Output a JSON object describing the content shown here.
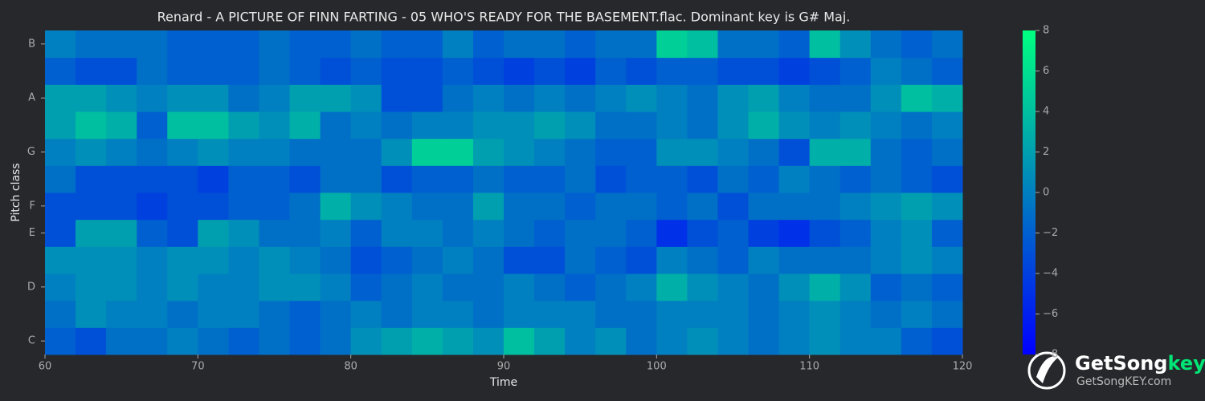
{
  "chart_data": {
    "type": "heatmap",
    "title": "Renard - A PICTURE OF FINN FARTING - 05 WHO'S READY FOR THE BASEMENT.flac. Dominant key is G# Maj.",
    "xlabel": "Time",
    "ylabel": "Pitch class",
    "categories": [
      "C",
      null,
      "D",
      null,
      "E",
      "F",
      null,
      "G",
      null,
      "A",
      null,
      "B"
    ],
    "x": [
      60,
      62,
      64,
      66,
      68,
      70,
      72,
      74,
      76,
      78,
      80,
      82,
      84,
      86,
      88,
      90,
      92,
      94,
      96,
      98,
      100,
      102,
      104,
      106,
      108,
      110,
      112,
      114,
      116,
      118
    ],
    "xlim": [
      60,
      120
    ],
    "xticks": [
      60,
      70,
      80,
      90,
      100,
      110,
      120
    ],
    "z": [
      [
        -2,
        -3,
        -1,
        -1,
        0,
        -1,
        -2,
        -1,
        -2,
        -1,
        1,
        2,
        3,
        2,
        1,
        4,
        2,
        0,
        1,
        -1,
        0,
        1,
        0,
        -1,
        0,
        1,
        0,
        0,
        -2,
        -3
      ],
      [
        -1,
        1,
        0,
        0,
        -1,
        0,
        0,
        -1,
        -2,
        -1,
        0,
        -1,
        0,
        0,
        -1,
        0,
        0,
        0,
        -1,
        -1,
        0,
        0,
        0,
        -1,
        0,
        1,
        0,
        -1,
        0,
        -1
      ],
      [
        0,
        1,
        1,
        0,
        1,
        0,
        0,
        1,
        1,
        0,
        -2,
        -1,
        0,
        -1,
        -1,
        0,
        -1,
        -2,
        -1,
        0,
        3,
        1,
        0,
        -1,
        1,
        3,
        1,
        -2,
        -1,
        -2
      ],
      [
        1,
        1,
        1,
        0,
        1,
        1,
        0,
        1,
        0,
        -1,
        -3,
        -2,
        -1,
        0,
        -1,
        -3,
        -3,
        -1,
        -2,
        -3,
        0,
        -1,
        -2,
        0,
        -1,
        -1,
        -1,
        0,
        1,
        0
      ],
      [
        -3,
        2,
        2,
        -2,
        -3,
        2,
        1,
        -1,
        -1,
        0,
        -2,
        0,
        0,
        -1,
        0,
        -1,
        -2,
        -1,
        -1,
        -2,
        -5,
        -3,
        -2,
        -4,
        -5,
        -3,
        -2,
        0,
        1,
        -2
      ],
      [
        -3,
        -3,
        -3,
        -4,
        -3,
        -3,
        -2,
        -2,
        -1,
        3,
        1,
        0,
        -1,
        -1,
        2,
        -1,
        -1,
        -2,
        -1,
        -1,
        -2,
        -1,
        -3,
        -1,
        -1,
        -1,
        0,
        1,
        2,
        1
      ],
      [
        -1,
        -3,
        -3,
        -3,
        -3,
        -4,
        -2,
        -2,
        -3,
        -1,
        -1,
        -3,
        -2,
        -2,
        -1,
        -2,
        -2,
        -1,
        -3,
        -2,
        -2,
        -3,
        -1,
        -2,
        0,
        -1,
        -2,
        -1,
        -2,
        -3
      ],
      [
        0,
        1,
        0,
        -1,
        0,
        1,
        0,
        0,
        -1,
        -1,
        -1,
        1,
        5,
        5,
        2,
        1,
        0,
        -1,
        -2,
        -2,
        1,
        1,
        0,
        -1,
        -3,
        3,
        3,
        -1,
        -2,
        -1
      ],
      [
        2,
        4,
        3,
        -2,
        4,
        4,
        2,
        1,
        3,
        -1,
        0,
        -1,
        0,
        0,
        1,
        1,
        2,
        1,
        -1,
        -1,
        0,
        -1,
        1,
        3,
        1,
        0,
        1,
        0,
        -1,
        0
      ],
      [
        2,
        2,
        1,
        0,
        1,
        1,
        -1,
        0,
        2,
        2,
        1,
        -3,
        -3,
        -1,
        0,
        -1,
        0,
        -1,
        0,
        1,
        0,
        -1,
        1,
        2,
        0,
        -1,
        -1,
        1,
        4,
        3
      ],
      [
        -2,
        -3,
        -3,
        -1,
        -2,
        -2,
        -2,
        -1,
        -2,
        -3,
        -2,
        -3,
        -3,
        -2,
        -3,
        -4,
        -3,
        -4,
        -2,
        -3,
        -2,
        -2,
        -3,
        -3,
        -4,
        -3,
        -2,
        0,
        -1,
        -2
      ],
      [
        0,
        -1,
        -1,
        -1,
        -2,
        -2,
        -2,
        -1,
        -2,
        -2,
        -1,
        -2,
        -2,
        0,
        -2,
        -1,
        -1,
        -2,
        -1,
        -1,
        5,
        4,
        -1,
        -1,
        -2,
        4,
        1,
        -1,
        -2,
        -1
      ]
    ],
    "colormap": [
      "#0000ff",
      "#00ff80"
    ],
    "clim": [
      -8,
      8
    ],
    "cticks": [
      {
        "value": -8,
        "label": "−8"
      },
      {
        "value": -6,
        "label": "−6"
      },
      {
        "value": -4,
        "label": "−4"
      },
      {
        "value": -2,
        "label": "−2"
      },
      0,
      2,
      4,
      6,
      8
    ]
  },
  "watermark": {
    "brand": "GetSong",
    "brand_accent": "key",
    "url": "GetSongKEY.com"
  }
}
